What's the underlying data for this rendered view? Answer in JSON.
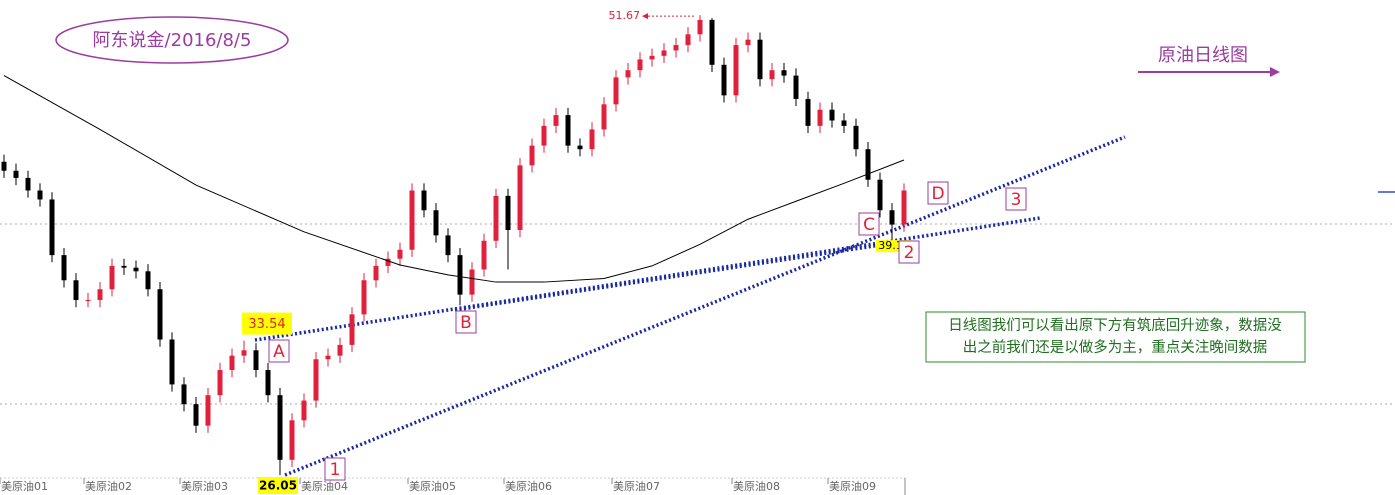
{
  "chart_data": {
    "type": "candlestick",
    "title": "阿东说金/2016/8/5",
    "subtitle": "原油日线图",
    "note": [
      "日线图我们可以看出原下方有筑底回升迹象，数据没",
      "出之前我们还是以做多为主，重点关注晚间数据"
    ],
    "point_labels": [
      "A",
      "B",
      "C",
      "D",
      "1",
      "2",
      "3"
    ],
    "categories": [
      "美原油01",
      null,
      null,
      null,
      null,
      null,
      null,
      "美原油02",
      null,
      null,
      null,
      null,
      null,
      null,
      null,
      "美原油03",
      null,
      null,
      null,
      null,
      null,
      null,
      null,
      null,
      null,
      "美原油04",
      null,
      null,
      null,
      null,
      null,
      null,
      null,
      null,
      "美原油05",
      null,
      null,
      null,
      null,
      null,
      null,
      null,
      "美原油06",
      null,
      null,
      null,
      null,
      null,
      null,
      null,
      null,
      "美原油07",
      null,
      null,
      null,
      null,
      null,
      null,
      null,
      null,
      null,
      "美原油08",
      null,
      null,
      null,
      null,
      null,
      null,
      null,
      "美原油09",
      null,
      null,
      null,
      null,
      null,
      null
    ],
    "open": [
      43.5,
      43.0,
      42.6,
      41.9,
      41.4,
      38.3,
      36.9,
      35.8,
      35.8,
      36.4,
      37.7,
      37.6,
      37.4,
      36.4,
      33.6,
      31.1,
      30.0,
      28.8,
      30.5,
      31.9,
      32.7,
      33.0,
      31.9,
      30.5,
      26.9,
      29.1,
      30.2,
      32.5,
      32.7,
      33.3,
      35.0,
      36.9,
      37.7,
      38.1,
      38.6,
      41.9,
      40.8,
      39.4,
      38.3,
      36.1,
      37.5,
      39.1,
      41.6,
      39.7,
      43.3,
      44.4,
      45.5,
      46.1,
      44.4,
      44.2,
      45.3,
      46.7,
      48.2,
      48.6,
      49.2,
      49.4,
      49.7,
      50.0,
      50.6,
      51.4,
      48.9,
      47.2,
      50.0,
      50.3,
      48.1,
      48.6,
      48.3,
      47.0,
      45.5,
      46.4,
      45.8,
      45.5,
      44.2,
      42.5,
      40.8,
      40.0
    ],
    "high": [
      43.9,
      43.4,
      43.0,
      42.3,
      41.8,
      38.7,
      37.3,
      36.2,
      36.8,
      38.1,
      38.1,
      38.0,
      37.8,
      36.8,
      34.0,
      31.5,
      30.4,
      30.9,
      32.3,
      33.1,
      33.54,
      33.4,
      32.3,
      30.9,
      29.5,
      30.6,
      32.9,
      33.1,
      33.7,
      35.4,
      37.3,
      38.1,
      38.5,
      39.0,
      42.3,
      42.3,
      41.2,
      39.8,
      38.7,
      37.9,
      39.5,
      42.0,
      42.0,
      43.7,
      44.8,
      45.9,
      46.5,
      46.5,
      44.8,
      45.7,
      47.1,
      48.6,
      49.0,
      49.6,
      49.8,
      50.1,
      50.4,
      51.0,
      51.67,
      51.5,
      49.3,
      50.4,
      50.7,
      50.7,
      49.0,
      49.0,
      48.7,
      47.4,
      46.8,
      46.8,
      46.2,
      45.9,
      44.6,
      42.9,
      41.2,
      42.3
    ],
    "low": [
      42.6,
      42.2,
      41.5,
      41.0,
      37.9,
      36.5,
      35.4,
      35.4,
      35.4,
      36.0,
      37.2,
      37.0,
      36.0,
      33.2,
      30.7,
      29.6,
      28.4,
      28.4,
      30.1,
      31.5,
      32.3,
      31.5,
      30.1,
      26.05,
      26.5,
      28.7,
      29.8,
      32.1,
      32.3,
      32.9,
      34.6,
      36.5,
      37.3,
      37.7,
      38.2,
      40.4,
      39.0,
      37.9,
      35.5,
      35.7,
      37.1,
      38.7,
      37.5,
      39.3,
      42.9,
      44.0,
      45.1,
      44.0,
      43.8,
      43.8,
      44.9,
      46.3,
      47.8,
      48.2,
      48.8,
      49.0,
      49.3,
      49.6,
      50.2,
      48.5,
      46.8,
      46.8,
      49.6,
      47.7,
      47.7,
      47.9,
      46.6,
      45.1,
      45.1,
      45.4,
      45.1,
      43.8,
      42.1,
      40.4,
      39.19,
      39.6
    ],
    "close": [
      43.0,
      42.6,
      41.9,
      41.4,
      38.3,
      36.9,
      35.8,
      35.8,
      36.4,
      37.7,
      37.6,
      37.4,
      36.4,
      33.6,
      31.1,
      30.0,
      28.8,
      30.5,
      31.9,
      32.7,
      33.0,
      31.9,
      30.5,
      26.9,
      29.1,
      30.2,
      32.5,
      32.7,
      33.3,
      35.0,
      36.9,
      37.7,
      38.1,
      38.6,
      41.9,
      40.8,
      39.4,
      38.3,
      36.1,
      37.5,
      39.1,
      41.6,
      39.7,
      43.3,
      44.4,
      45.5,
      46.1,
      44.4,
      44.2,
      45.3,
      46.7,
      48.2,
      48.6,
      49.2,
      49.4,
      49.7,
      50.0,
      50.6,
      51.4,
      48.9,
      47.2,
      50.0,
      50.3,
      48.1,
      48.6,
      48.3,
      47.0,
      45.5,
      46.4,
      45.8,
      45.5,
      44.2,
      42.5,
      40.8,
      40.0,
      41.9
    ],
    "up_color": "#e0203c",
    "down_color": "#000000",
    "ma": {
      "color": "#000000",
      "x": [
        0,
        8,
        16,
        25,
        33,
        37,
        41,
        45,
        50,
        54,
        58,
        62,
        66,
        70,
        75
      ],
      "values": [
        48.3,
        45.3,
        42.2,
        39.6,
        37.75,
        37.2,
        36.8,
        36.8,
        37.0,
        37.7,
        38.9,
        40.3,
        41.3,
        42.3,
        43.6
      ]
    },
    "ylim": [
      24.94,
      52.51
    ]
  }
}
